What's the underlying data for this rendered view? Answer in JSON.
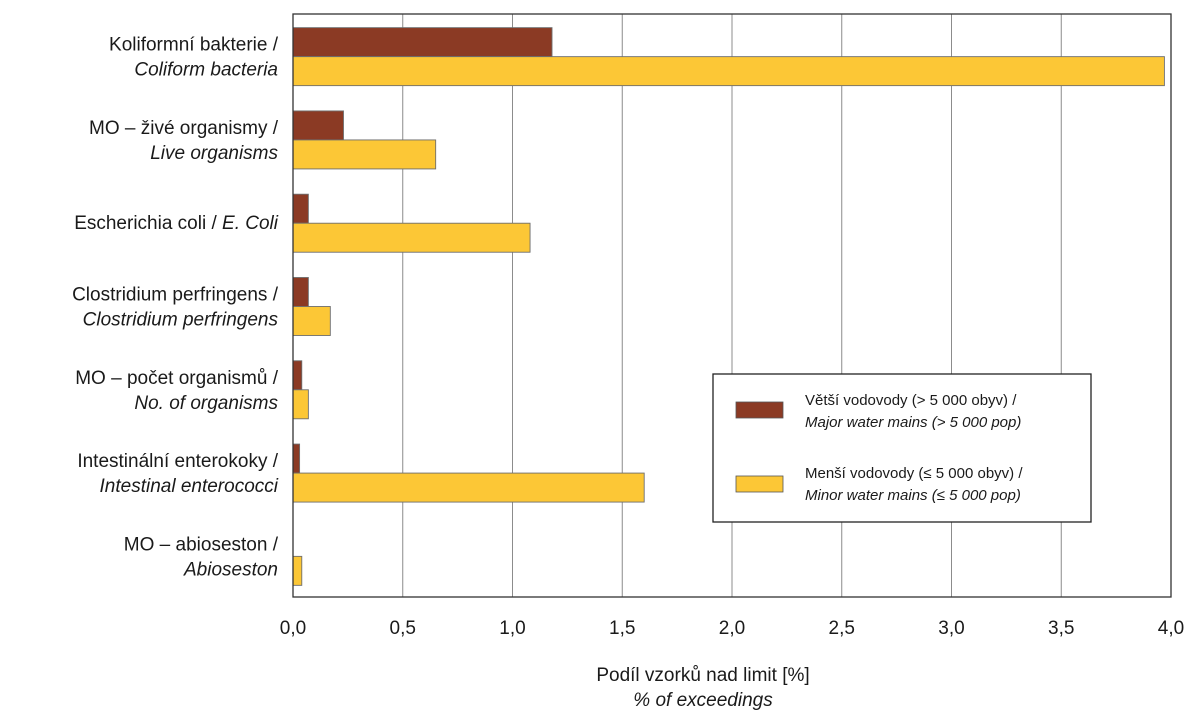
{
  "chart_data": {
    "type": "bar",
    "orientation": "horizontal",
    "categories": [
      {
        "line1": "Koliformní bakterie /",
        "line2": "Coliform bacteria"
      },
      {
        "line1": "MO – živé organismy /",
        "line2": "Live organisms"
      },
      {
        "line1": "Escherichia coli /",
        "line2": "E. Coli",
        "single_line": true
      },
      {
        "line1": "Clostridium perfringens /",
        "line2": "Clostridium perfringens"
      },
      {
        "line1": "MO – počet organismů /",
        "line2": "No. of organisms"
      },
      {
        "line1": "Intestinální enterokoky /",
        "line2": "Intestinal enterococci"
      },
      {
        "line1": "MO – abioseston /",
        "line2": "Abioseston"
      }
    ],
    "series": [
      {
        "name_cz": "Větší vodovody (> 5 000 obyv) /",
        "name_en": "Major water mains (> 5 000 pop)",
        "color": "#8b3a24",
        "values": [
          1.18,
          0.23,
          0.07,
          0.07,
          0.04,
          0.03,
          0.0
        ]
      },
      {
        "name_cz": "Menší vodovody (≤ 5 000 obyv) /",
        "name_en": "Minor water mains (≤ 5 000 pop)",
        "color": "#fcc736",
        "values": [
          3.97,
          0.65,
          1.08,
          0.17,
          0.07,
          1.6,
          0.04
        ]
      }
    ],
    "xlim": [
      0,
      4.0
    ],
    "xticks": [
      "0,0",
      "0,5",
      "1,0",
      "1,5",
      "2,0",
      "2,5",
      "3,0",
      "3,5",
      "4,0"
    ],
    "xlabel_cz": "Podíl vzorků nad limit [%]",
    "xlabel_en": "% of exceedings",
    "grid": "vertical",
    "legend_position": "bottom-right"
  }
}
